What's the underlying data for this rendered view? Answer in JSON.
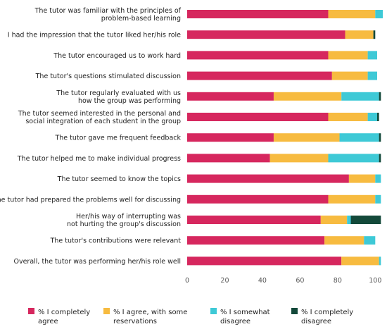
{
  "chart_data": {
    "type": "bar",
    "orientation": "horizontal",
    "stacked": true,
    "categories": [
      [
        "The tutor was familiar with the principles of",
        "problem-based learning"
      ],
      [
        "I had the impression that the tutor liked her/his role"
      ],
      [
        "The tutor encouraged us to work hard"
      ],
      [
        "The tutor's questions stimulated discussion"
      ],
      [
        "The tutor regularly evaluated with us",
        "how the group was performing"
      ],
      [
        "The tutor seemed interested in the personal and",
        "social integration of each student in the group"
      ],
      [
        "The tutor gave me frequent feedback"
      ],
      [
        "The tutor helped me to make individual progress"
      ],
      [
        "The tutor seemed to know the topics"
      ],
      [
        "I think the tutor had prepared the problems well for discussing"
      ],
      [
        "Her/his way of interrupting was",
        "not hurting the group's discussion"
      ],
      [
        "The tutor's contributions were relevant"
      ],
      [
        "Overall, the tutor was performing her/his role well"
      ]
    ],
    "series": [
      {
        "name": [
          "% I completely",
          "agree"
        ],
        "color": "#d6275e",
        "values": [
          75,
          84,
          75,
          77,
          46,
          75,
          46,
          44,
          86,
          75,
          71,
          73,
          82
        ]
      },
      {
        "name": [
          "% I agree, with some",
          "reservations"
        ],
        "color": "#f7bb40",
        "values": [
          25,
          15,
          21,
          19,
          36,
          21,
          35,
          31,
          14,
          25,
          14,
          21,
          20
        ]
      },
      {
        "name": [
          "% I somewhat",
          "disagree"
        ],
        "color": "#3ec9d6",
        "values": [
          4,
          0,
          5,
          5,
          20,
          5,
          21,
          27,
          3,
          3,
          2,
          6,
          1
        ]
      },
      {
        "name": [
          "% I completely",
          "disagree"
        ],
        "color": "#13493a",
        "values": [
          0,
          1,
          0,
          0,
          1,
          1,
          1,
          1,
          0,
          0,
          16,
          0,
          0
        ]
      }
    ],
    "x_ticks": [
      0,
      20,
      40,
      60,
      80,
      100
    ],
    "xlim": [
      0,
      104
    ],
    "grid": false,
    "legend": "bottom"
  }
}
